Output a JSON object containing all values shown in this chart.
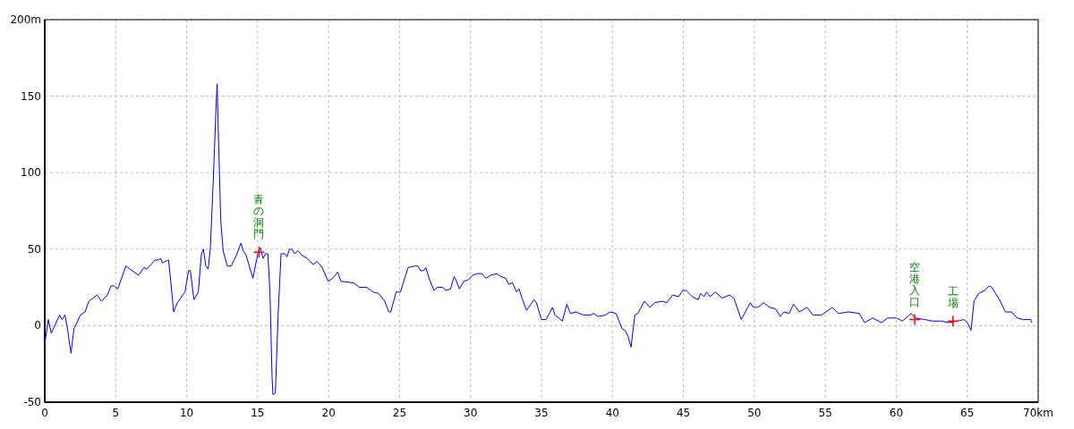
{
  "chart_data": {
    "type": "line",
    "x": [
      0,
      0.25,
      0.46,
      1.05,
      1.22,
      1.43,
      1.6,
      1.85,
      2.06,
      2.52,
      2.84,
      3.11,
      3.68,
      4.0,
      4.41,
      4.67,
      4.88,
      5.15,
      5.72,
      6.0,
      6.62,
      6.98,
      7.19,
      7.78,
      8.03,
      8.16,
      8.3,
      8.72,
      8.87,
      9.08,
      9.35,
      9.88,
      10.13,
      10.26,
      10.51,
      10.82,
      11.04,
      11.18,
      11.35,
      11.52,
      11.67,
      11.88,
      12.09,
      12.15,
      12.23,
      12.4,
      12.57,
      12.86,
      13.14,
      13.5,
      13.83,
      13.98,
      14.19,
      14.67,
      15.03,
      15.18,
      15.39,
      15.56,
      15.72,
      15.87,
      16.02,
      16.08,
      16.25,
      16.44,
      16.65,
      16.92,
      17.07,
      17.24,
      17.41,
      17.62,
      17.83,
      18.12,
      18.5,
      18.92,
      19.19,
      19.55,
      19.97,
      20.29,
      20.64,
      20.87,
      21.76,
      22.18,
      22.7,
      23.13,
      23.54,
      23.96,
      24.24,
      24.38,
      24.76,
      25.06,
      25.6,
      26.07,
      26.28,
      26.49,
      26.7,
      26.85,
      27.12,
      27.43,
      27.64,
      28.06,
      28.27,
      28.59,
      28.84,
      28.97,
      29.22,
      29.53,
      29.85,
      30.16,
      30.48,
      30.79,
      31.07,
      31.43,
      31.85,
      32.16,
      32.48,
      32.69,
      32.96,
      33.25,
      33.42,
      33.63,
      33.95,
      34.47,
      34.64,
      35.0,
      35.32,
      35.78,
      35.95,
      36.47,
      36.79,
      37.04,
      37.42,
      37.95,
      38.47,
      38.68,
      38.99,
      39.52,
      39.84,
      40.25,
      40.68,
      40.89,
      41.1,
      41.31,
      41.58,
      41.79,
      42.25,
      42.63,
      42.99,
      43.51,
      43.83,
      44.25,
      44.67,
      44.95,
      45.2,
      45.62,
      46.04,
      46.21,
      46.46,
      46.63,
      46.88,
      47.26,
      47.72,
      48.24,
      48.56,
      49.08,
      49.71,
      49.92,
      50.24,
      50.66,
      51.08,
      51.5,
      51.82,
      52.09,
      52.45,
      52.76,
      53.18,
      53.71,
      54.13,
      54.76,
      55.49,
      55.92,
      56.65,
      57.39,
      57.77,
      58.33,
      58.96,
      59.39,
      60.02,
      60.43,
      61.06,
      61.34,
      62.01,
      62.54,
      63.17,
      63.69,
      64.32,
      64.75,
      65.0,
      65.27,
      65.48,
      65.8,
      66.22,
      66.53,
      66.74,
      67.27,
      67.69,
      68.11,
      68.53,
      68.95,
      69.47,
      69.54
    ],
    "series": [
      {
        "color": "#0000ff",
        "values": [
          -12,
          4,
          -5,
          7,
          4,
          7,
          -2,
          -18,
          -2,
          7,
          9,
          16,
          20,
          16,
          20,
          26,
          26,
          24,
          39,
          37,
          33,
          38,
          37,
          43,
          43,
          44,
          41,
          43,
          30,
          9,
          15,
          22,
          36,
          36,
          17,
          22,
          47,
          50,
          39,
          37,
          51,
          96,
          148,
          158,
          127,
          69,
          49,
          39,
          39,
          46,
          54,
          49,
          46,
          31,
          48,
          51,
          44,
          47,
          47,
          22,
          -34,
          -45,
          -44,
          6,
          47,
          47,
          45,
          50,
          50,
          47,
          49,
          46,
          44,
          40,
          42,
          38,
          29,
          31,
          35,
          29,
          28,
          25,
          25,
          22,
          21,
          16,
          9,
          9,
          22,
          22,
          38,
          39,
          39,
          36,
          36,
          38,
          30,
          23,
          25,
          25,
          23,
          24,
          32,
          30,
          24,
          29,
          30,
          33,
          34,
          34,
          31,
          33,
          34,
          32,
          31,
          27,
          28,
          22,
          24,
          18,
          10,
          17,
          15,
          4,
          4,
          12,
          7,
          3,
          14,
          8,
          9,
          7,
          7,
          8,
          6,
          7,
          9,
          8,
          -2,
          -3,
          -7,
          -14,
          7,
          8,
          16,
          12,
          15,
          16,
          15,
          20,
          19,
          23,
          23,
          19,
          17,
          21,
          19,
          22,
          19,
          22,
          18,
          20,
          18,
          4,
          15,
          12,
          12,
          15,
          12,
          11,
          6,
          9,
          8,
          14,
          9,
          12,
          7,
          7,
          12,
          8,
          9,
          8,
          2,
          5,
          2,
          5,
          5,
          3,
          8,
          5,
          4,
          3,
          3,
          2,
          3,
          4,
          2,
          -3,
          16,
          21,
          23,
          26,
          25,
          17,
          9,
          9,
          5,
          4,
          4,
          2
        ]
      }
    ],
    "xlim": [
      0,
      70
    ],
    "ylim": [
      -50,
      200
    ],
    "xticks": [
      0,
      5,
      10,
      15,
      20,
      25,
      30,
      35,
      40,
      45,
      50,
      55,
      60,
      65,
      {
        "value": 70,
        "label": "70km"
      }
    ],
    "yticks": [
      -50,
      0,
      50,
      100,
      150,
      {
        "value": 200,
        "label": "200m"
      }
    ],
    "grid": true,
    "marker": "none",
    "line_style": "solid",
    "annotations": [
      {
        "text": "青の洞門",
        "x": 15.1,
        "y": 48
      },
      {
        "text": "空港入口",
        "x": 61.3,
        "y": 4
      },
      {
        "text": "工場",
        "x": 64.0,
        "y": 3
      }
    ]
  }
}
